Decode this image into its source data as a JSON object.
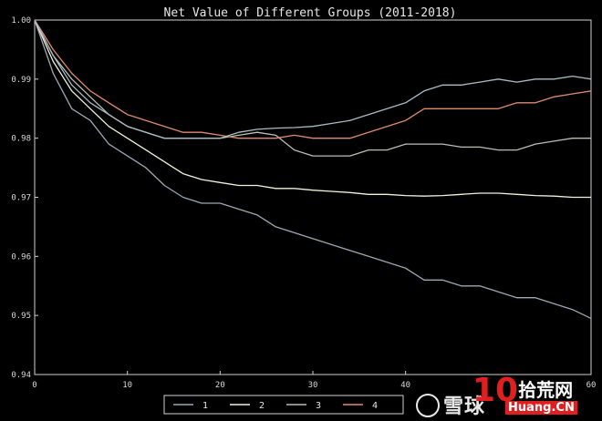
{
  "chart_data": {
    "type": "line",
    "title": "Net Value of Different Groups (2011-2018)",
    "xlabel": "",
    "ylabel": "",
    "xlim": [
      0,
      60
    ],
    "ylim": [
      0.94,
      1.0
    ],
    "xticks": [
      0,
      10,
      20,
      30,
      40,
      60
    ],
    "yticks": [
      0.94,
      0.95,
      0.96,
      0.97,
      0.98,
      0.99,
      1.0
    ],
    "grid": false,
    "legend_position": "bottom-center",
    "x": [
      0,
      2,
      4,
      6,
      8,
      10,
      12,
      14,
      16,
      18,
      20,
      22,
      24,
      26,
      28,
      30,
      32,
      34,
      36,
      38,
      40,
      42,
      44,
      46,
      48,
      50,
      52,
      54,
      56,
      58,
      60
    ],
    "series": [
      {
        "name": "1",
        "color": "#9aa8b5",
        "values": [
          1.0,
          0.991,
          0.985,
          0.983,
          0.979,
          0.977,
          0.975,
          0.972,
          0.97,
          0.969,
          0.969,
          0.968,
          0.967,
          0.965,
          0.964,
          0.963,
          0.962,
          0.961,
          0.96,
          0.959,
          0.958,
          0.956,
          0.956,
          0.955,
          0.955,
          0.954,
          0.953,
          0.953,
          0.952,
          0.951,
          0.9495
        ]
      },
      {
        "name": "2",
        "color": "#f2f2d9",
        "values": [
          1.0,
          0.993,
          0.988,
          0.985,
          0.982,
          0.98,
          0.978,
          0.976,
          0.974,
          0.973,
          0.9725,
          0.972,
          0.972,
          0.9715,
          0.9715,
          0.9712,
          0.971,
          0.9708,
          0.9705,
          0.9705,
          0.9703,
          0.9702,
          0.9703,
          0.9705,
          0.9707,
          0.9707,
          0.9705,
          0.9703,
          0.9702,
          0.97,
          0.97
        ]
      },
      {
        "name": "3",
        "color": "#b8c0b0",
        "values": [
          1.0,
          0.994,
          0.99,
          0.987,
          0.984,
          0.982,
          0.981,
          0.98,
          0.98,
          0.98,
          0.98,
          0.9805,
          0.981,
          0.9805,
          0.978,
          0.977,
          0.977,
          0.977,
          0.978,
          0.978,
          0.979,
          0.979,
          0.979,
          0.9785,
          0.9785,
          0.978,
          0.978,
          0.979,
          0.9795,
          0.98,
          0.98
        ]
      },
      {
        "name": "4",
        "color": "#e08a6f",
        "values": [
          1.0,
          0.995,
          0.991,
          0.988,
          0.986,
          0.984,
          0.983,
          0.982,
          0.981,
          0.981,
          0.9805,
          0.98,
          0.98,
          0.98,
          0.9805,
          0.98,
          0.98,
          0.98,
          0.981,
          0.982,
          0.983,
          0.985,
          0.985,
          0.985,
          0.985,
          0.985,
          0.986,
          0.986,
          0.987,
          0.9875,
          0.988
        ]
      },
      {
        "name": "",
        "color": "#a7bcc7",
        "values": [
          1.0,
          0.994,
          0.989,
          0.986,
          0.984,
          0.982,
          0.981,
          0.98,
          0.98,
          0.98,
          0.98,
          0.981,
          0.9815,
          0.9817,
          0.9818,
          0.982,
          0.9825,
          0.983,
          0.984,
          0.985,
          0.986,
          0.988,
          0.989,
          0.989,
          0.9895,
          0.99,
          0.9895,
          0.99,
          0.99,
          0.9905,
          0.99
        ]
      }
    ]
  },
  "watermark": {
    "xueqiu": "雪球",
    "huang_num": "10",
    "huang_cn": "拾荒网",
    "huang_domain": "Huang.CN"
  }
}
